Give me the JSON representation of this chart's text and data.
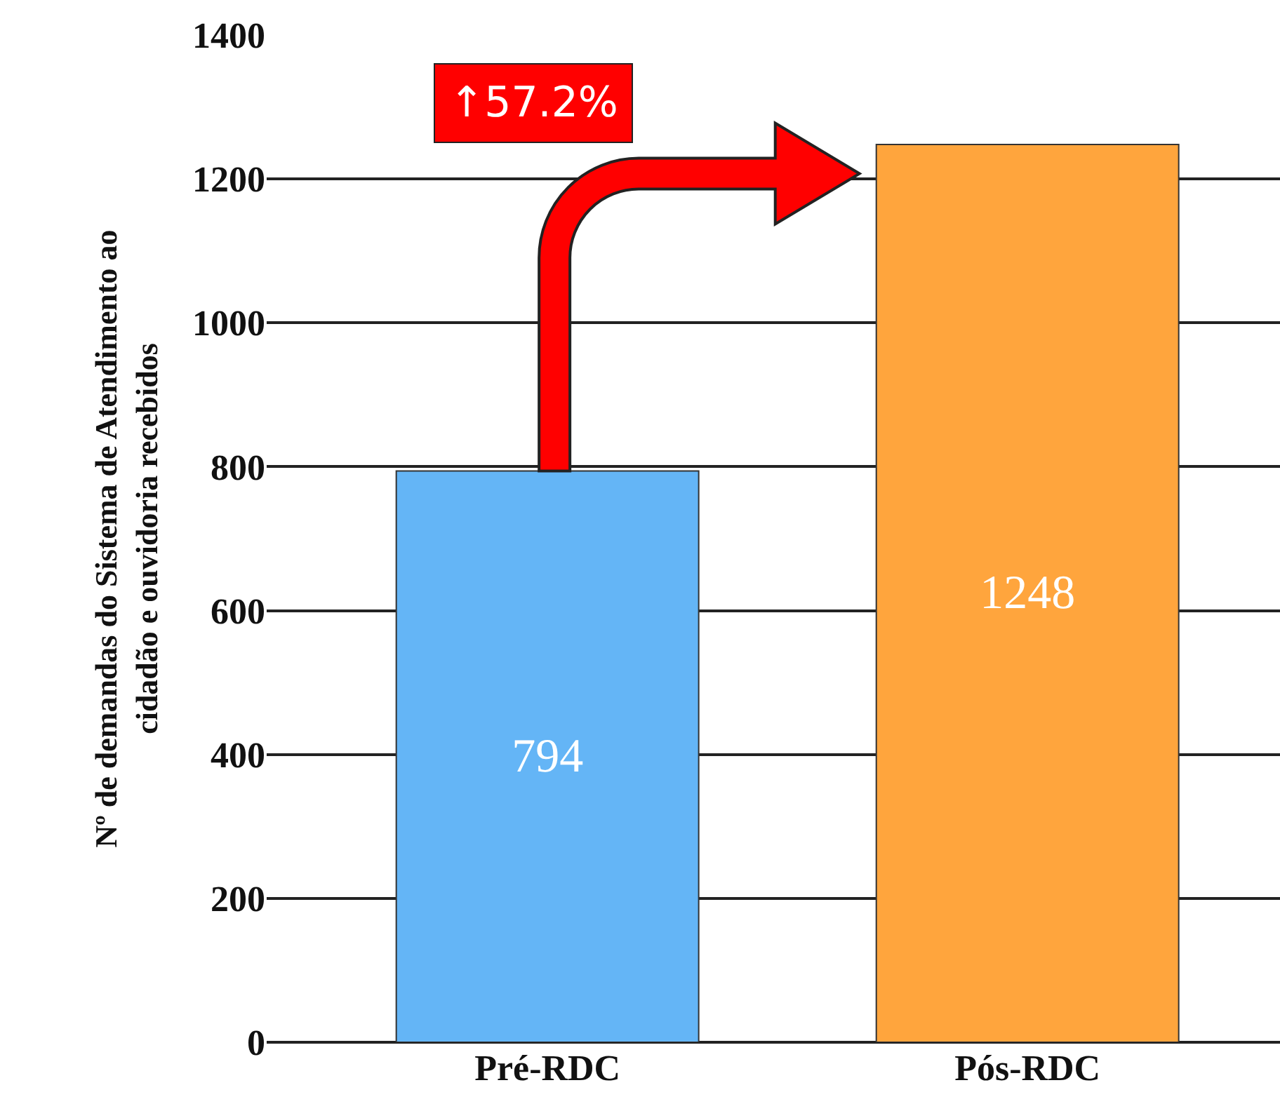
{
  "chart_data": {
    "type": "bar",
    "ylabel": "Nº de demandas do Sistema de Atendimento ao\ncidadão e ouvidoria recebidos",
    "categories": [
      "Pré-RDC",
      "Pós-RDC"
    ],
    "values": [
      794,
      1248
    ],
    "colors": [
      "#64b5f6",
      "#ffa53d"
    ],
    "data_labels": true,
    "ylim": [
      0,
      1400
    ],
    "yticks": [
      0,
      200,
      400,
      600,
      800,
      1000,
      1200,
      1400
    ],
    "grid": "y",
    "annotations": [
      "↑57.2%"
    ]
  }
}
